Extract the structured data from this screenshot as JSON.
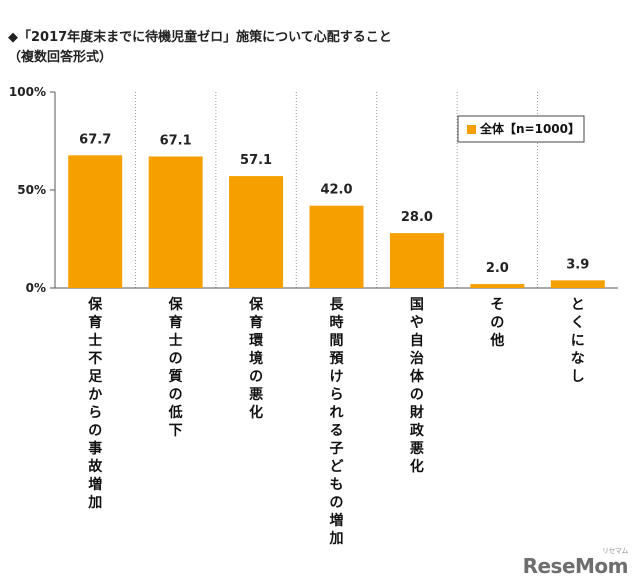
{
  "title_lines": [
    "◆「2017年度末までに待機児童ゼロ」施策について心配すること",
    "（複数回答形式）"
  ],
  "watermark": {
    "text": "ReseMom",
    "sub": "リセマム"
  },
  "colors": {
    "bar": "#f5a000",
    "axis": "#555555",
    "grid": "#999999"
  },
  "chart_data": {
    "type": "bar",
    "categories": [
      "保育士不足からの事故増加",
      "保育士の質の低下",
      "保育環境の悪化",
      "長時間預けられる子どもの増加",
      "国や自治体の財政悪化",
      "その他",
      "とくになし"
    ],
    "series": [
      {
        "name": "全体【n=1000】",
        "values": [
          67.7,
          67.1,
          57.1,
          42.0,
          28.0,
          2.0,
          3.9
        ]
      }
    ],
    "value_labels": [
      "67.7",
      "67.1",
      "57.1",
      "42.0",
      "28.0",
      "2.0",
      "3.9"
    ],
    "y_ticks": [
      0,
      50,
      100
    ],
    "y_tick_labels": [
      "0%",
      "50%",
      "100%"
    ],
    "ylim": [
      0,
      100
    ],
    "grid": "vertical category separators",
    "legend_position": "top-right",
    "category_label_orientation": "vertical"
  }
}
